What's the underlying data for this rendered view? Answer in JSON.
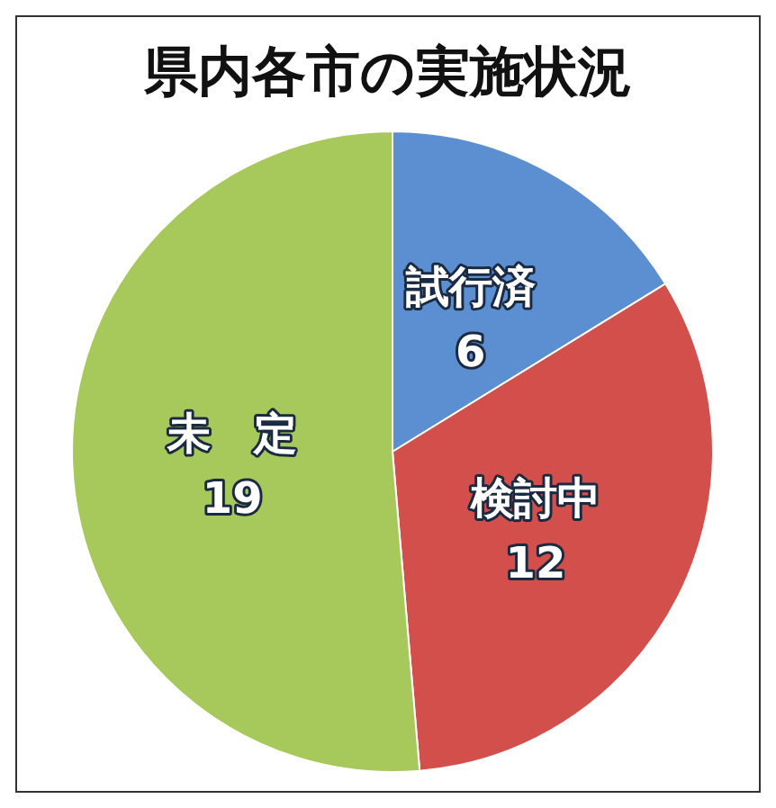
{
  "chart_data": {
    "type": "pie",
    "title": "県内各市の実施状況",
    "categories": [
      "試行済",
      "検討中",
      "未　定"
    ],
    "values": [
      6,
      12,
      19
    ],
    "colors": [
      "#5b8fd2",
      "#d24f4c",
      "#a7c85a"
    ],
    "data_labels": true
  }
}
